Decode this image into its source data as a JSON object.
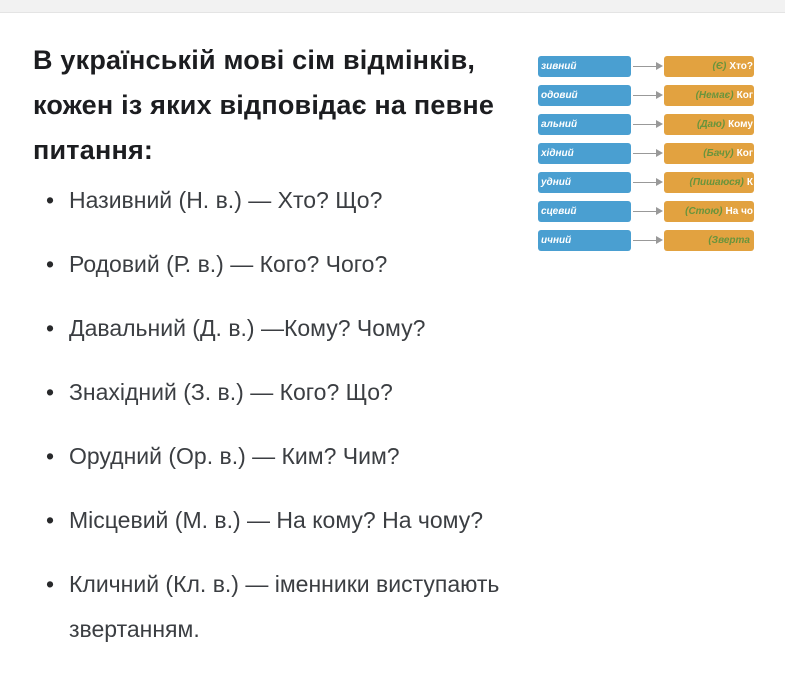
{
  "heading": {
    "lines": [
      "В українській мові сім відмінків,",
      "кожен із яких відповідає на певне",
      "питання:"
    ]
  },
  "list": {
    "bullet_glyph": "•",
    "items": [
      "Називний (Н. в.) — Хто? Що?",
      "Родовий (Р. в.) — Кого? Чого?",
      "Давальний (Д. в.) —Кому? Чому?",
      "Знахідний (З. в.) — Кого? Що?",
      "Орудний (Ор. в.) — Ким? Чим?",
      "Місцевий (М. в.) — На кому? На чому?",
      "Кличний (Кл. в.) — іменники виступають звертанням."
    ]
  },
  "diagram": {
    "colors": {
      "case_box": "#4a9fd1",
      "question_box": "#e2a240",
      "hint_text": "#69943c",
      "arrow": "#999999"
    },
    "rows": [
      {
        "case_fragment": "зивний",
        "hint": "(Є)",
        "question": "Хто?"
      },
      {
        "case_fragment": "одовий",
        "hint": "(Немає)",
        "question": "Ког"
      },
      {
        "case_fragment": "альний",
        "hint": "(Даю)",
        "question": "Кому"
      },
      {
        "case_fragment": "хідний",
        "hint": "(Бачу)",
        "question": "Ког"
      },
      {
        "case_fragment": "удний",
        "hint": "(Пишаюся)",
        "question": "К"
      },
      {
        "case_fragment": "сцевий",
        "hint": "(Стою)",
        "question": "На чо"
      },
      {
        "case_fragment": "ичний",
        "hint": "(Зверта",
        "question": ""
      }
    ]
  }
}
